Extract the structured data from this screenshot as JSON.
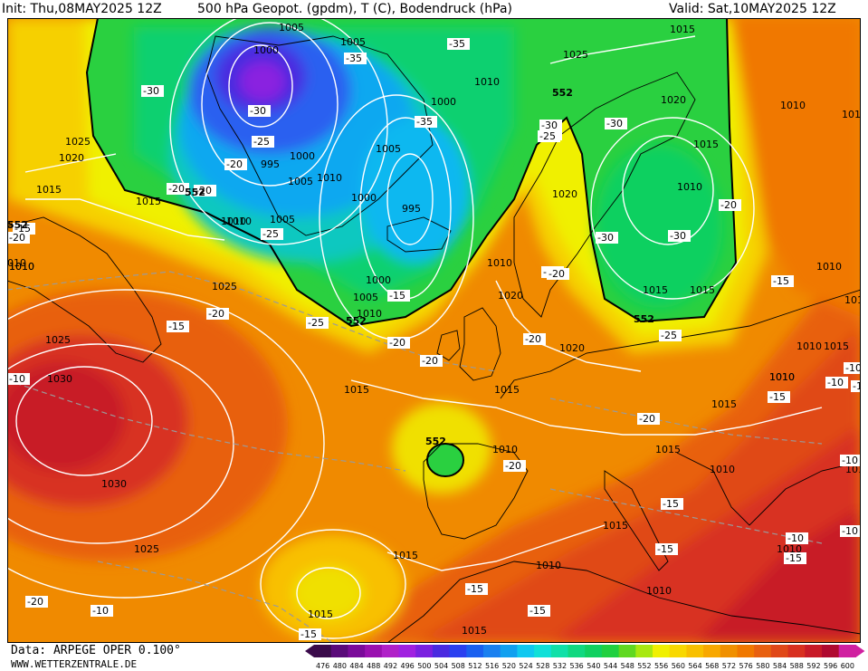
{
  "header": {
    "init": "Init: Thu,08MAY2025 12Z",
    "title": "500 hPa Geopot. (gpdm), T (C), Bodendruck (hPa)",
    "valid": "Valid: Sat,10MAY2025 12Z"
  },
  "footer": {
    "data_source": "Data: ARPEGE OPER 0.100°",
    "website": "WWW.WETTERZENTRALE.DE"
  },
  "colors": {
    "c476": "#3a0a4a",
    "c480": "#5a0a7a",
    "c484": "#7a0a9a",
    "c488": "#9a10b0",
    "c492": "#b020c8",
    "c496": "#a020e0",
    "c500": "#7a20e0",
    "c504": "#4a2ae0",
    "c508": "#2a40f0",
    "c512": "#1a60f0",
    "c516": "#1a80f0",
    "c520": "#10a0f0",
    "c524": "#10c8f0",
    "c528": "#10e0d8",
    "c532": "#10e0a8",
    "c536": "#10d880",
    "c540": "#10d060",
    "c544": "#20d040",
    "c548": "#60d820",
    "c552": "#a8e810",
    "c556": "#f0f000",
    "c560": "#f8d800",
    "c564": "#f8c000",
    "c568": "#f8a800",
    "c572": "#f09000",
    "c576": "#f07800",
    "c580": "#e86010",
    "c584": "#e04818",
    "c588": "#d83020",
    "c592": "#c81a28",
    "c596": "#b00a30",
    "c600": "#d020a0"
  },
  "legend_ticks": [
    "476",
    "480",
    "484",
    "488",
    "492",
    "496",
    "500",
    "504",
    "508",
    "512",
    "516",
    "520",
    "524",
    "528",
    "532",
    "536",
    "540",
    "544",
    "548",
    "552",
    "556",
    "560",
    "564",
    "568",
    "572",
    "576",
    "580",
    "584",
    "588",
    "592",
    "596",
    "600"
  ],
  "pressure_labels": [
    {
      "text": "1005",
      "x": 1005
    },
    {
      "text": "1000"
    },
    {
      "text": "1005"
    },
    {
      "text": "1025"
    },
    {
      "text": "1015"
    },
    {
      "text": "1010"
    },
    {
      "text": "1000"
    },
    {
      "text": "1020"
    },
    {
      "text": "1025"
    },
    {
      "text": "1020"
    },
    {
      "text": "995"
    },
    {
      "text": "1000"
    },
    {
      "text": "1005"
    },
    {
      "text": "1010"
    },
    {
      "text": "1005"
    },
    {
      "text": "1000"
    },
    {
      "text": "1015"
    },
    {
      "text": "1015"
    },
    {
      "text": "1010"
    },
    {
      "text": "1015"
    },
    {
      "text": "1010"
    },
    {
      "text": "1020"
    },
    {
      "text": "995"
    },
    {
      "text": "1005"
    },
    {
      "text": "1010"
    },
    {
      "text": "1025"
    },
    {
      "text": "1010"
    },
    {
      "text": "1000"
    },
    {
      "text": "1020"
    },
    {
      "text": "1005"
    },
    {
      "text": "1010"
    },
    {
      "text": "1020"
    },
    {
      "text": "1015"
    },
    {
      "text": "1015"
    },
    {
      "text": "1025"
    },
    {
      "text": "1030"
    },
    {
      "text": "1015"
    },
    {
      "text": "1015"
    },
    {
      "text": "1015"
    },
    {
      "text": "1010"
    },
    {
      "text": "1010"
    },
    {
      "text": "1015"
    },
    {
      "text": "1010"
    },
    {
      "text": "1015"
    },
    {
      "text": "1010"
    },
    {
      "text": "1030"
    },
    {
      "text": "1025"
    },
    {
      "text": "1015"
    },
    {
      "text": "1015"
    },
    {
      "text": "1010"
    },
    {
      "text": "1010"
    },
    {
      "text": "1010"
    },
    {
      "text": "1010"
    },
    {
      "text": "1015"
    },
    {
      "text": "1010"
    },
    {
      "text": "1015"
    },
    {
      "text": "1015"
    },
    {
      "text": "1010"
    },
    {
      "text": "1010"
    },
    {
      "text": "1015"
    },
    {
      "text": "1010"
    },
    {
      "text": "1010"
    }
  ],
  "temperature_labels": [
    "-35",
    "-30",
    "-30",
    "-35",
    "-25",
    "-20",
    "-20",
    "-20",
    "-25",
    "-15",
    "-20",
    "-35",
    "-30",
    "-25",
    "-30",
    "-25",
    "-30",
    "-30",
    "-20",
    "-20",
    "-20",
    "-20",
    "-15",
    "-20",
    "-25",
    "-20",
    "-25",
    "-20",
    "-15",
    "-10",
    "-15",
    "-20",
    "-15",
    "-20",
    "-20",
    "-15",
    "-10",
    "-15",
    "-15",
    "-10",
    "-15",
    "-10",
    "-15",
    "-10",
    "-10",
    "-10",
    "-10",
    "-15"
  ],
  "geopotential_labels": [
    "552",
    "552",
    "552",
    "552",
    "552"
  ],
  "edge_labels": [
    "552",
    "010"
  ]
}
